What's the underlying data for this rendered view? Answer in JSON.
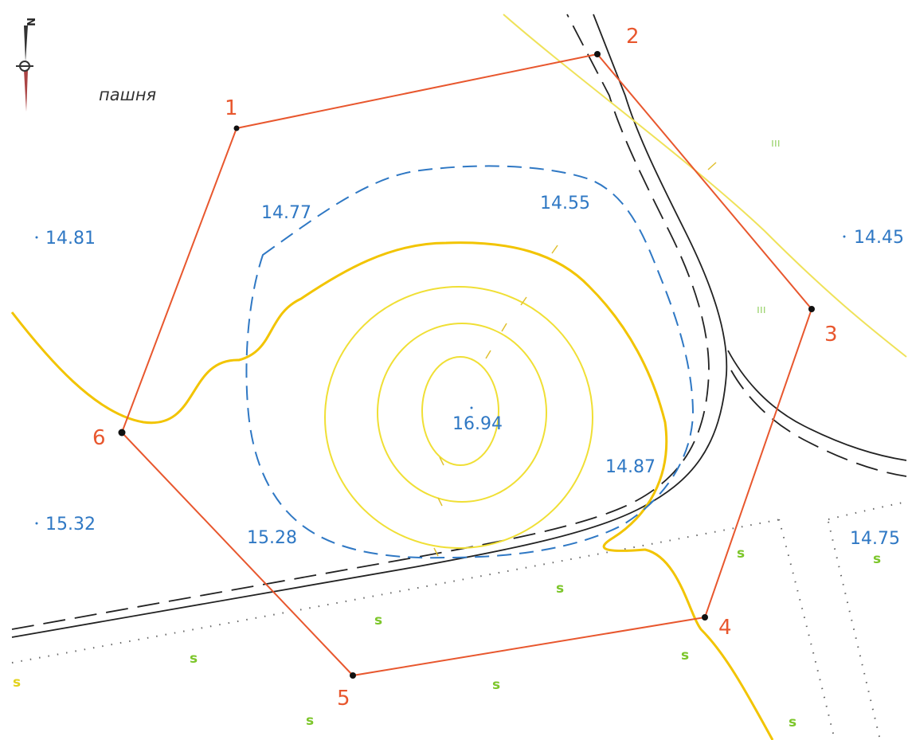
{
  "land_use": "пашня",
  "parcel": {
    "vertices": [
      {
        "label": "1"
      },
      {
        "label": "2"
      },
      {
        "label": "3"
      },
      {
        "label": "4"
      },
      {
        "label": "5"
      },
      {
        "label": "6"
      }
    ]
  },
  "elevation_marks": [
    {
      "value": "14.81"
    },
    {
      "value": "14.77"
    },
    {
      "value": "14.55"
    },
    {
      "value": "14.45"
    },
    {
      "value": "16.94"
    },
    {
      "value": "14.87"
    },
    {
      "value": "15.32"
    },
    {
      "value": "15.28"
    },
    {
      "value": "14.75"
    }
  ],
  "north_arrow": {
    "letter": "N"
  },
  "symbols": {
    "meadow": "s",
    "vegetation": "ııı"
  },
  "colors": {
    "boundary": "#e8572e",
    "contour": "#f2d21a",
    "contour_index": "#f0c000",
    "contour_dashed": "#2f78c4",
    "road": "#222222",
    "elevation_text": "#2f78c4",
    "vertex_label": "#e8572e"
  }
}
